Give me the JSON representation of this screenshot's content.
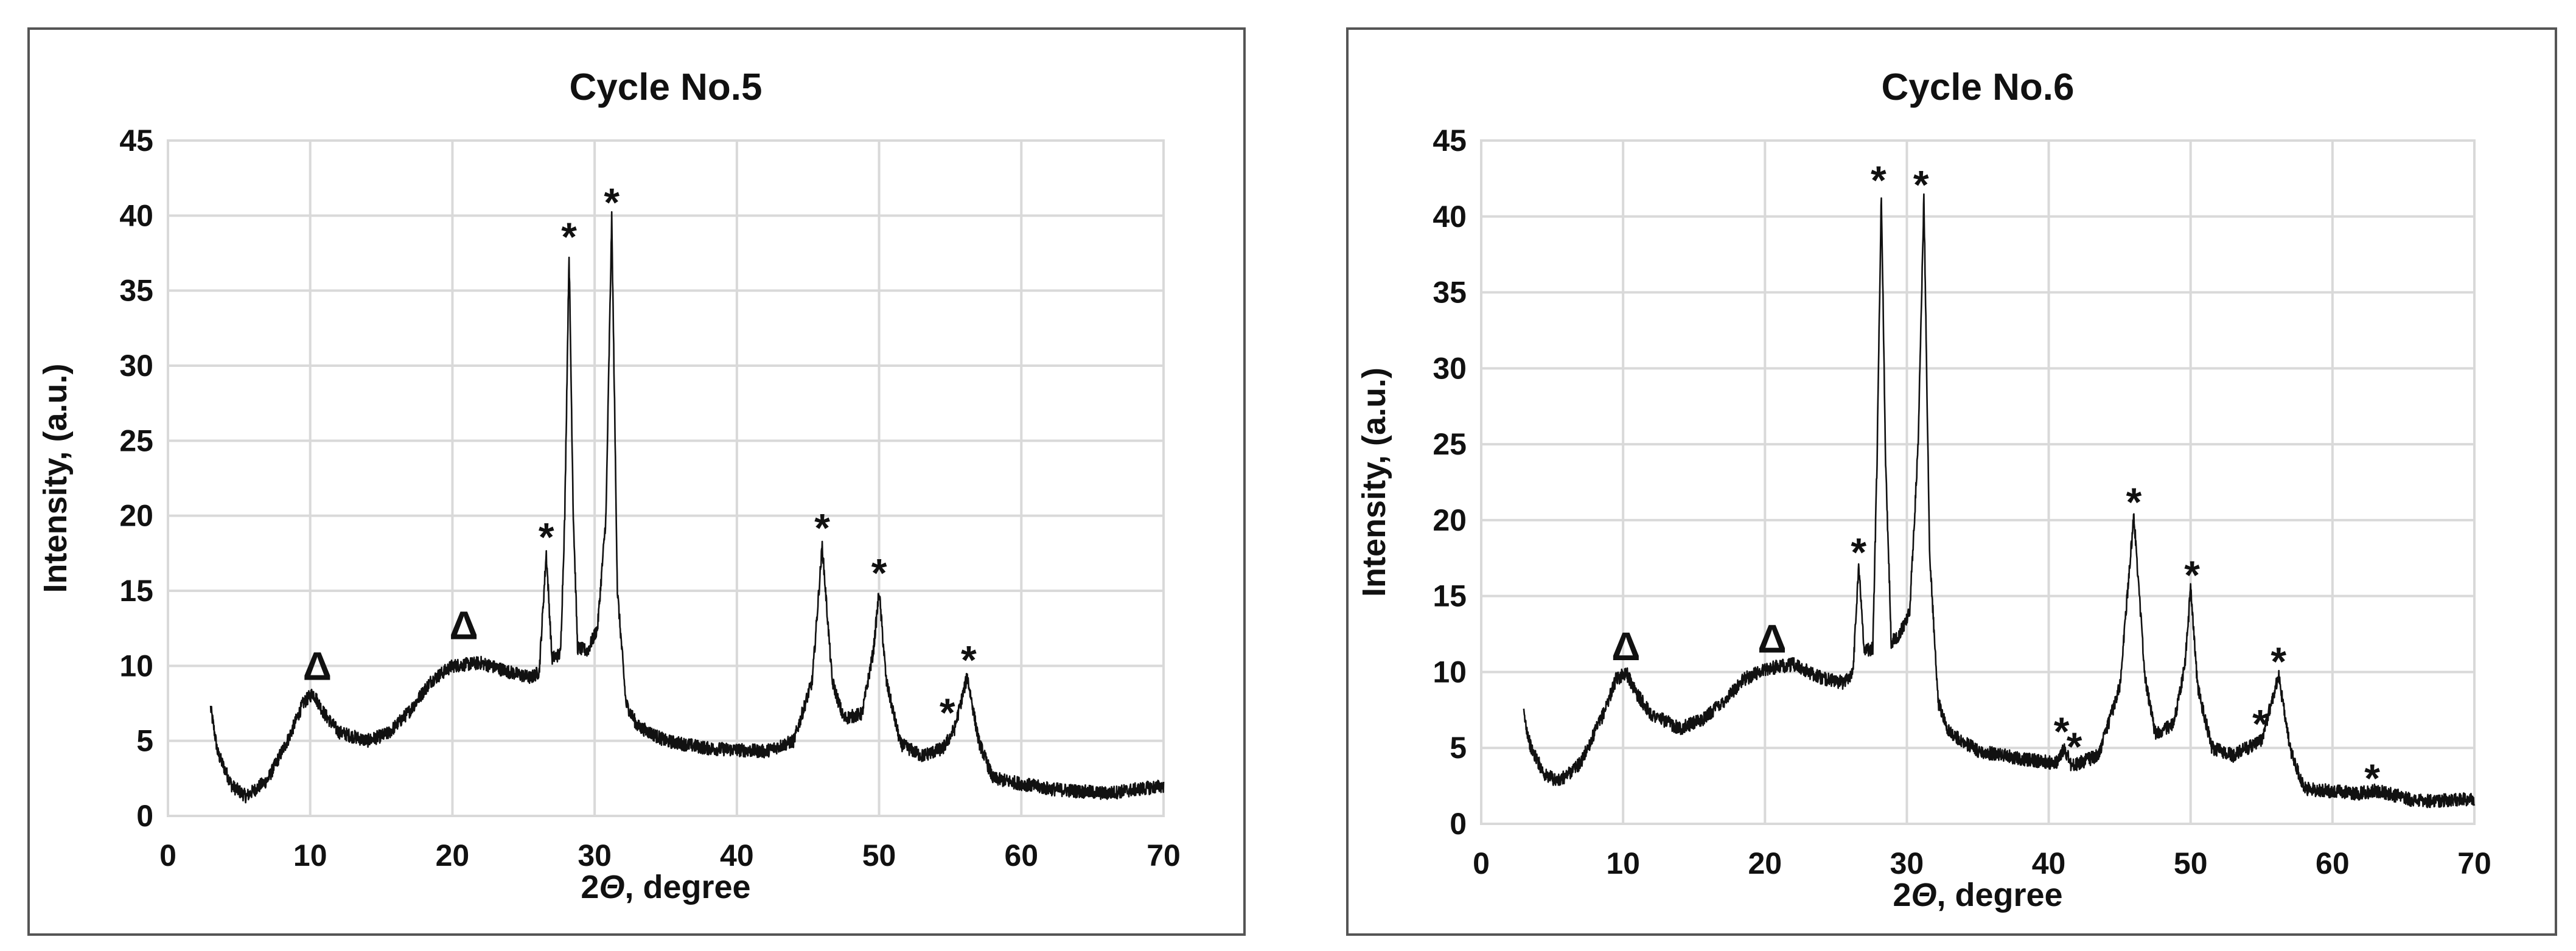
{
  "chart_data": [
    {
      "type": "line",
      "title": "Cycle No.5",
      "xlabel_prefix": "2",
      "xlabel_symbol": "Θ",
      "xlabel_suffix": ", degree",
      "ylabel": "Intensity, (a.u.)",
      "xlim": [
        0,
        70
      ],
      "ylim": [
        0,
        45
      ],
      "xticks": [
        0,
        10,
        20,
        30,
        40,
        50,
        60,
        70
      ],
      "yticks": [
        0,
        5,
        10,
        15,
        20,
        25,
        30,
        35,
        40,
        45
      ],
      "grid": true,
      "baseline": [
        [
          3,
          7.2
        ],
        [
          3.5,
          4.2
        ],
        [
          4.5,
          2.0
        ],
        [
          5.5,
          1.3
        ],
        [
          7,
          2.4
        ],
        [
          8.5,
          5.2
        ],
        [
          9.5,
          7.5
        ],
        [
          10.2,
          8.2
        ],
        [
          11,
          6.8
        ],
        [
          12,
          5.6
        ],
        [
          14,
          5.0
        ],
        [
          15.5,
          5.5
        ],
        [
          17,
          7.0
        ],
        [
          18.5,
          9.0
        ],
        [
          20,
          10.0
        ],
        [
          22,
          10.2
        ],
        [
          24,
          9.6
        ],
        [
          25.5,
          9.2
        ],
        [
          26.1,
          9.6
        ],
        [
          26.6,
          17.5
        ],
        [
          27.0,
          10.5
        ],
        [
          27.6,
          10.8
        ],
        [
          27.9,
          20.0
        ],
        [
          28.2,
          37.5
        ],
        [
          28.5,
          20.0
        ],
        [
          28.8,
          11.2
        ],
        [
          29.5,
          11.0
        ],
        [
          30.2,
          12.5
        ],
        [
          30.8,
          20.0
        ],
        [
          31.2,
          39.8
        ],
        [
          31.6,
          15.0
        ],
        [
          32.2,
          7.5
        ],
        [
          33,
          6.0
        ],
        [
          35,
          5.0
        ],
        [
          38,
          4.5
        ],
        [
          42,
          4.3
        ],
        [
          44,
          5.0
        ],
        [
          45.3,
          9.0
        ],
        [
          46.0,
          18.0
        ],
        [
          46.7,
          9.0
        ],
        [
          47.5,
          6.5
        ],
        [
          48.8,
          6.8
        ],
        [
          49.6,
          11.0
        ],
        [
          50.0,
          15.0
        ],
        [
          50.5,
          9.0
        ],
        [
          51.5,
          4.8
        ],
        [
          53,
          4.0
        ],
        [
          54.5,
          4.5
        ],
        [
          55.3,
          5.8
        ],
        [
          56.2,
          9.3
        ],
        [
          57.0,
          5.0
        ],
        [
          58,
          2.5
        ],
        [
          62,
          1.8
        ],
        [
          66,
          1.5
        ],
        [
          70,
          2.0
        ]
      ],
      "noise_amp": 0.45,
      "annotations": [
        {
          "symbol": "Δ",
          "x": 10.5,
          "y": 9.8
        },
        {
          "symbol": "Δ",
          "x": 20.8,
          "y": 12.5
        },
        {
          "symbol": "*",
          "x": 26.6,
          "y": 19.2
        },
        {
          "symbol": "*",
          "x": 28.2,
          "y": 39.2
        },
        {
          "symbol": "*",
          "x": 31.2,
          "y": 41.5
        },
        {
          "symbol": "*",
          "x": 46.0,
          "y": 19.8
        },
        {
          "symbol": "*",
          "x": 50.0,
          "y": 16.8
        },
        {
          "symbol": "*",
          "x": 54.8,
          "y": 7.5
        },
        {
          "symbol": "*",
          "x": 56.3,
          "y": 11.0
        }
      ]
    },
    {
      "type": "line",
      "title": "Cycle No.6",
      "xlabel_prefix": "2",
      "xlabel_symbol": "Θ",
      "xlabel_suffix": ", degree",
      "ylabel": "Intensity, (a.u.)",
      "xlim": [
        0,
        70
      ],
      "ylim": [
        0,
        45
      ],
      "xticks": [
        0,
        10,
        20,
        30,
        40,
        50,
        60,
        70
      ],
      "yticks": [
        0,
        5,
        10,
        15,
        20,
        25,
        30,
        35,
        40,
        45
      ],
      "grid": true,
      "baseline": [
        [
          3,
          7.2
        ],
        [
          3.5,
          5.0
        ],
        [
          4.5,
          3.2
        ],
        [
          5.5,
          2.8
        ],
        [
          7,
          4.0
        ],
        [
          8.5,
          7.0
        ],
        [
          9.5,
          9.5
        ],
        [
          10.2,
          10.0
        ],
        [
          11,
          8.5
        ],
        [
          12,
          7.2
        ],
        [
          14,
          6.3
        ],
        [
          15.5,
          6.8
        ],
        [
          17,
          8.0
        ],
        [
          18.5,
          9.5
        ],
        [
          20,
          10.2
        ],
        [
          22,
          10.5
        ],
        [
          24,
          9.6
        ],
        [
          25.5,
          9.3
        ],
        [
          26.2,
          10.0
        ],
        [
          26.6,
          17.0
        ],
        [
          27.0,
          11.5
        ],
        [
          27.6,
          11.5
        ],
        [
          27.9,
          24.0
        ],
        [
          28.2,
          41.5
        ],
        [
          28.5,
          24.0
        ],
        [
          28.9,
          12.0
        ],
        [
          29.5,
          12.5
        ],
        [
          30.2,
          14.0
        ],
        [
          30.8,
          25.0
        ],
        [
          31.2,
          41.3
        ],
        [
          31.6,
          18.0
        ],
        [
          32.2,
          8.0
        ],
        [
          33,
          6.0
        ],
        [
          35,
          4.8
        ],
        [
          38,
          4.3
        ],
        [
          40.5,
          4.0
        ],
        [
          41.1,
          5.0
        ],
        [
          41.6,
          3.8
        ],
        [
          43.5,
          4.5
        ],
        [
          45.0,
          9.0
        ],
        [
          46.0,
          20.3
        ],
        [
          46.8,
          9.5
        ],
        [
          47.5,
          6.0
        ],
        [
          48.8,
          6.5
        ],
        [
          49.6,
          10.5
        ],
        [
          50.0,
          15.5
        ],
        [
          50.5,
          9.0
        ],
        [
          51.5,
          5.0
        ],
        [
          53,
          4.5
        ],
        [
          55.0,
          5.5
        ],
        [
          56.2,
          9.8
        ],
        [
          57.0,
          5.0
        ],
        [
          58,
          2.3
        ],
        [
          62,
          2.0
        ],
        [
          63,
          2.2
        ],
        [
          66,
          1.5
        ],
        [
          70,
          1.6
        ]
      ],
      "noise_amp": 0.45,
      "annotations": [
        {
          "symbol": "Δ",
          "x": 10.2,
          "y": 11.5
        },
        {
          "symbol": "Δ",
          "x": 20.5,
          "y": 12.0
        },
        {
          "symbol": "*",
          "x": 26.6,
          "y": 18.5
        },
        {
          "symbol": "*",
          "x": 28.0,
          "y": 43.0
        },
        {
          "symbol": "*",
          "x": 31.0,
          "y": 42.7
        },
        {
          "symbol": "*",
          "x": 40.9,
          "y": 6.7
        },
        {
          "symbol": "*",
          "x": 41.8,
          "y": 5.7
        },
        {
          "symbol": "*",
          "x": 46.0,
          "y": 21.8
        },
        {
          "symbol": "*",
          "x": 50.1,
          "y": 17.0
        },
        {
          "symbol": "*",
          "x": 54.9,
          "y": 7.2
        },
        {
          "symbol": "*",
          "x": 56.2,
          "y": 11.3
        },
        {
          "symbol": "*",
          "x": 62.8,
          "y": 3.6
        }
      ]
    }
  ]
}
